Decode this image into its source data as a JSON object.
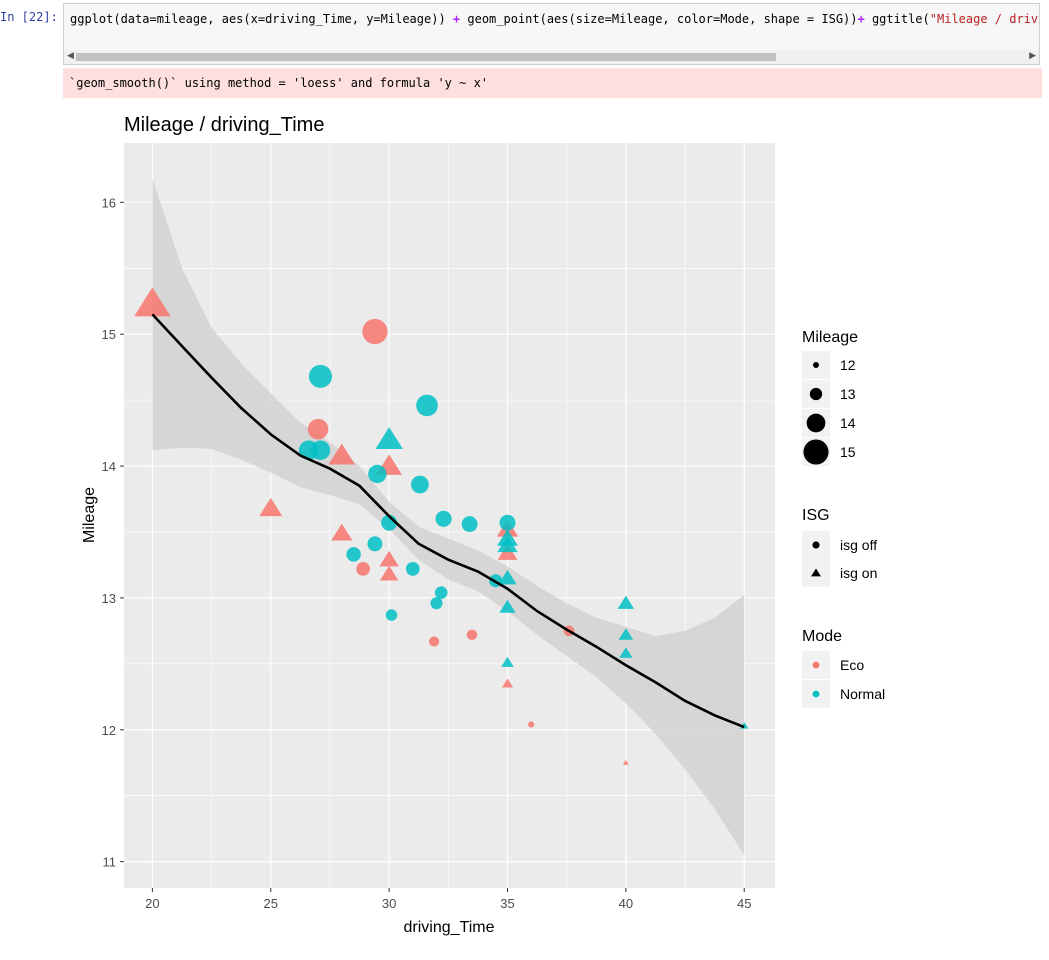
{
  "cell": {
    "prompt": "In [22]:",
    "code_segments": [
      {
        "text": "ggplot(data=mileage, aes(x=driving_Time, y=Mileage)) ",
        "cls": ""
      },
      {
        "text": "+",
        "cls": "op"
      },
      {
        "text": " geom_point(aes(size=Mileage, color=Mode, shape = ISG))",
        "cls": ""
      },
      {
        "text": "+",
        "cls": "op"
      },
      {
        "text": " ggtitle(",
        "cls": ""
      },
      {
        "text": "\"Mileage / driving_",
        "cls": "str"
      }
    ],
    "stderr": "`geom_smooth()` using method = 'loess' and formula 'y ~ x'"
  },
  "colors": {
    "eco": "#F8766D",
    "normal": "#00BFC4",
    "panel": "#EBEBEB",
    "grid": "#FFFFFF",
    "ribbon": "#D2D2D2",
    "smooth": "#000000"
  },
  "chart_data": {
    "type": "scatter",
    "title": "Mileage / driving_Time",
    "xlabel": "driving_Time",
    "ylabel": "Mileage",
    "xlim": [
      18.8,
      46.3
    ],
    "ylim": [
      10.8,
      16.45
    ],
    "x_ticks": [
      20,
      25,
      30,
      35,
      40,
      45
    ],
    "y_ticks": [
      11,
      12,
      13,
      14,
      15,
      16
    ],
    "points": [
      {
        "x": 20.0,
        "y": 15.23,
        "mode": "Eco",
        "isg": "isg on"
      },
      {
        "x": 25.0,
        "y": 13.68,
        "mode": "Eco",
        "isg": "isg on"
      },
      {
        "x": 27.0,
        "y": 14.28,
        "mode": "Eco",
        "isg": "isg off"
      },
      {
        "x": 28.0,
        "y": 14.08,
        "mode": "Eco",
        "isg": "isg on"
      },
      {
        "x": 28.0,
        "y": 13.49,
        "mode": "Eco",
        "isg": "isg on"
      },
      {
        "x": 28.9,
        "y": 13.22,
        "mode": "Eco",
        "isg": "isg off"
      },
      {
        "x": 29.4,
        "y": 15.02,
        "mode": "Eco",
        "isg": "isg off"
      },
      {
        "x": 30.0,
        "y": 14.0,
        "mode": "Eco",
        "isg": "isg on"
      },
      {
        "x": 30.0,
        "y": 13.29,
        "mode": "Eco",
        "isg": "isg on"
      },
      {
        "x": 30.0,
        "y": 13.18,
        "mode": "Eco",
        "isg": "isg on"
      },
      {
        "x": 31.9,
        "y": 12.67,
        "mode": "Eco",
        "isg": "isg off"
      },
      {
        "x": 33.5,
        "y": 12.72,
        "mode": "Eco",
        "isg": "isg off"
      },
      {
        "x": 35.0,
        "y": 13.52,
        "mode": "Eco",
        "isg": "isg on"
      },
      {
        "x": 35.0,
        "y": 13.34,
        "mode": "Eco",
        "isg": "isg on"
      },
      {
        "x": 35.0,
        "y": 12.35,
        "mode": "Eco",
        "isg": "isg on"
      },
      {
        "x": 36.0,
        "y": 12.04,
        "mode": "Eco",
        "isg": "isg off"
      },
      {
        "x": 37.6,
        "y": 12.75,
        "mode": "Eco",
        "isg": "isg off"
      },
      {
        "x": 40.0,
        "y": 11.75,
        "mode": "Eco",
        "isg": "isg on"
      },
      {
        "x": 26.6,
        "y": 14.12,
        "mode": "Normal",
        "isg": "isg off"
      },
      {
        "x": 27.1,
        "y": 14.12,
        "mode": "Normal",
        "isg": "isg off"
      },
      {
        "x": 27.1,
        "y": 14.68,
        "mode": "Normal",
        "isg": "isg off"
      },
      {
        "x": 28.5,
        "y": 13.33,
        "mode": "Normal",
        "isg": "isg off"
      },
      {
        "x": 29.4,
        "y": 13.41,
        "mode": "Normal",
        "isg": "isg off"
      },
      {
        "x": 29.5,
        "y": 13.94,
        "mode": "Normal",
        "isg": "isg off"
      },
      {
        "x": 30.0,
        "y": 14.2,
        "mode": "Normal",
        "isg": "isg on"
      },
      {
        "x": 30.0,
        "y": 13.57,
        "mode": "Normal",
        "isg": "isg off"
      },
      {
        "x": 30.1,
        "y": 12.87,
        "mode": "Normal",
        "isg": "isg off"
      },
      {
        "x": 31.0,
        "y": 13.22,
        "mode": "Normal",
        "isg": "isg off"
      },
      {
        "x": 31.3,
        "y": 13.86,
        "mode": "Normal",
        "isg": "isg off"
      },
      {
        "x": 31.6,
        "y": 14.46,
        "mode": "Normal",
        "isg": "isg off"
      },
      {
        "x": 32.0,
        "y": 12.96,
        "mode": "Normal",
        "isg": "isg off"
      },
      {
        "x": 32.2,
        "y": 13.04,
        "mode": "Normal",
        "isg": "isg off"
      },
      {
        "x": 32.3,
        "y": 13.6,
        "mode": "Normal",
        "isg": "isg off"
      },
      {
        "x": 33.4,
        "y": 13.56,
        "mode": "Normal",
        "isg": "isg off"
      },
      {
        "x": 34.5,
        "y": 13.13,
        "mode": "Normal",
        "isg": "isg off"
      },
      {
        "x": 35.0,
        "y": 13.57,
        "mode": "Normal",
        "isg": "isg off"
      },
      {
        "x": 35.0,
        "y": 13.45,
        "mode": "Normal",
        "isg": "isg on"
      },
      {
        "x": 35.0,
        "y": 13.4,
        "mode": "Normal",
        "isg": "isg on"
      },
      {
        "x": 35.0,
        "y": 13.15,
        "mode": "Normal",
        "isg": "isg on"
      },
      {
        "x": 35.0,
        "y": 12.93,
        "mode": "Normal",
        "isg": "isg on"
      },
      {
        "x": 35.0,
        "y": 12.51,
        "mode": "Normal",
        "isg": "isg on"
      },
      {
        "x": 40.0,
        "y": 12.96,
        "mode": "Normal",
        "isg": "isg on"
      },
      {
        "x": 40.0,
        "y": 12.72,
        "mode": "Normal",
        "isg": "isg on"
      },
      {
        "x": 40.0,
        "y": 12.58,
        "mode": "Normal",
        "isg": "isg on"
      },
      {
        "x": 45.0,
        "y": 12.03,
        "mode": "Normal",
        "isg": "isg on"
      }
    ],
    "smooth": {
      "method": "loess",
      "x": [
        20,
        21.25,
        22.5,
        23.75,
        25,
        26.25,
        27.5,
        28.75,
        30,
        31.25,
        32.5,
        33.75,
        35,
        36.25,
        37.5,
        38.75,
        40,
        41.25,
        42.5,
        43.75,
        45
      ],
      "y": [
        15.15,
        14.91,
        14.67,
        14.44,
        14.24,
        14.08,
        13.98,
        13.85,
        13.62,
        13.41,
        13.29,
        13.2,
        13.07,
        12.9,
        12.76,
        12.63,
        12.49,
        12.36,
        12.22,
        12.11,
        12.02
      ],
      "lower": [
        14.12,
        14.14,
        14.13,
        14.05,
        13.95,
        13.84,
        13.78,
        13.71,
        13.52,
        13.29,
        13.14,
        13.05,
        12.9,
        12.72,
        12.56,
        12.4,
        12.2,
        11.97,
        11.7,
        11.4,
        11.05
      ],
      "upper": [
        16.18,
        15.5,
        15.05,
        14.78,
        14.55,
        14.33,
        14.18,
        14.0,
        13.73,
        13.54,
        13.45,
        13.36,
        13.24,
        13.09,
        12.96,
        12.85,
        12.78,
        12.71,
        12.75,
        12.85,
        13.02
      ]
    },
    "legend": {
      "size": {
        "title": "Mileage",
        "entries": [
          "12",
          "13",
          "14",
          "15"
        ],
        "values": [
          12,
          13,
          14,
          15
        ]
      },
      "shape": {
        "title": "ISG",
        "entries": [
          "isg off",
          "isg on"
        ]
      },
      "color": {
        "title": "Mode",
        "entries": [
          "Eco",
          "Normal"
        ]
      }
    }
  }
}
